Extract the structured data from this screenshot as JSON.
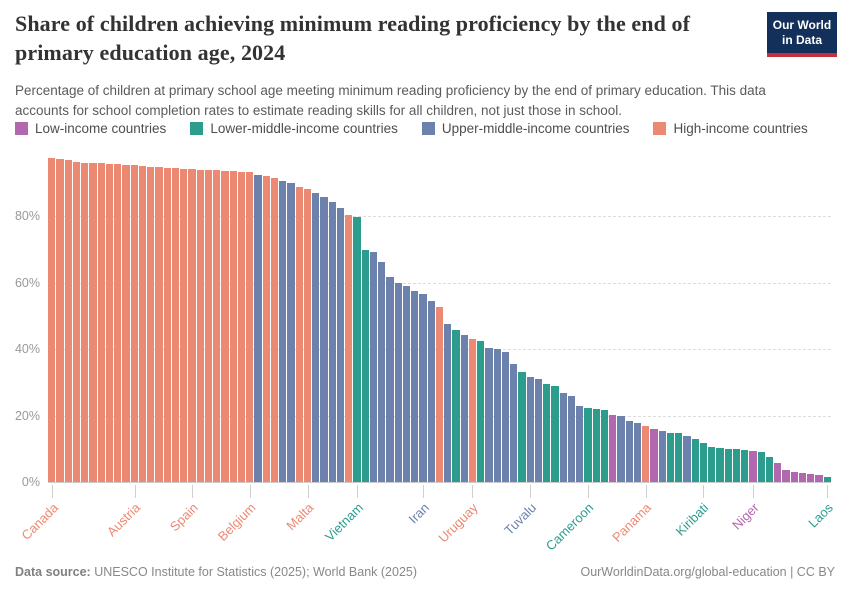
{
  "header": {
    "title": "Share of children achieving minimum reading proficiency by the end of primary education age, 2024",
    "subtitle": "Percentage of children at primary school age meeting minimum reading proficiency by the end of primary education. This data accounts for school completion rates to estimate reading skills for all children, not just those in school.",
    "logo_line1": "Our World",
    "logo_line2": "in Data"
  },
  "colors": {
    "low": "#b168ae",
    "lm": "#2c9d8d",
    "um": "#6c81ac",
    "high": "#ec8972"
  },
  "legend": {
    "items": [
      {
        "id": "low",
        "label": "Low-income countries"
      },
      {
        "id": "lm",
        "label": "Lower-middle-income countries"
      },
      {
        "id": "um",
        "label": "Upper-middle-income countries"
      },
      {
        "id": "high",
        "label": "High-income countries"
      }
    ]
  },
  "chart_data": {
    "type": "bar",
    "title": "Share of children achieving minimum reading proficiency by the end of primary education age, 2024",
    "xlabel": "",
    "ylabel": "",
    "ylim": [
      0,
      100
    ],
    "grid": true,
    "legend_position": "top",
    "unit": "%",
    "y_ticks": [
      {
        "label": "0%",
        "value": 0
      },
      {
        "label": "20%",
        "value": 20
      },
      {
        "label": "40%",
        "value": 40
      },
      {
        "label": "60%",
        "value": 60
      },
      {
        "label": "80%",
        "value": 80
      }
    ],
    "bars": [
      {
        "v": 97.5,
        "g": "high"
      },
      {
        "v": 97.2,
        "g": "high"
      },
      {
        "v": 96.9,
        "g": "high"
      },
      {
        "v": 96.4,
        "g": "high"
      },
      {
        "v": 96.2,
        "g": "high"
      },
      {
        "v": 96.1,
        "g": "high"
      },
      {
        "v": 96.0,
        "g": "high"
      },
      {
        "v": 95.9,
        "g": "high"
      },
      {
        "v": 95.8,
        "g": "high"
      },
      {
        "v": 95.6,
        "g": "high"
      },
      {
        "v": 95.5,
        "g": "high"
      },
      {
        "v": 95.2,
        "g": "high"
      },
      {
        "v": 94.9,
        "g": "high"
      },
      {
        "v": 94.8,
        "g": "high"
      },
      {
        "v": 94.6,
        "g": "high"
      },
      {
        "v": 94.5,
        "g": "high"
      },
      {
        "v": 94.4,
        "g": "high"
      },
      {
        "v": 94.3,
        "g": "high"
      },
      {
        "v": 94.1,
        "g": "high"
      },
      {
        "v": 94.0,
        "g": "high"
      },
      {
        "v": 93.9,
        "g": "high"
      },
      {
        "v": 93.8,
        "g": "high"
      },
      {
        "v": 93.6,
        "g": "high"
      },
      {
        "v": 93.5,
        "g": "high"
      },
      {
        "v": 93.3,
        "g": "high"
      },
      {
        "v": 92.6,
        "g": "um"
      },
      {
        "v": 92.2,
        "g": "high"
      },
      {
        "v": 91.5,
        "g": "high"
      },
      {
        "v": 90.8,
        "g": "um"
      },
      {
        "v": 90.0,
        "g": "um"
      },
      {
        "v": 89.0,
        "g": "high"
      },
      {
        "v": 88.2,
        "g": "high"
      },
      {
        "v": 87.2,
        "g": "um"
      },
      {
        "v": 85.8,
        "g": "um"
      },
      {
        "v": 84.2,
        "g": "um"
      },
      {
        "v": 82.5,
        "g": "um"
      },
      {
        "v": 80.3,
        "g": "high"
      },
      {
        "v": 79.8,
        "g": "lm"
      },
      {
        "v": 69.8,
        "g": "lm"
      },
      {
        "v": 69.2,
        "g": "um"
      },
      {
        "v": 66.3,
        "g": "um"
      },
      {
        "v": 61.7,
        "g": "um"
      },
      {
        "v": 59.8,
        "g": "um"
      },
      {
        "v": 59.0,
        "g": "um"
      },
      {
        "v": 57.5,
        "g": "um"
      },
      {
        "v": 56.5,
        "g": "um"
      },
      {
        "v": 54.6,
        "g": "um"
      },
      {
        "v": 52.6,
        "g": "high"
      },
      {
        "v": 47.6,
        "g": "um"
      },
      {
        "v": 45.8,
        "g": "lm"
      },
      {
        "v": 44.2,
        "g": "um"
      },
      {
        "v": 43.2,
        "g": "high"
      },
      {
        "v": 42.5,
        "g": "lm"
      },
      {
        "v": 40.5,
        "g": "um"
      },
      {
        "v": 40.0,
        "g": "um"
      },
      {
        "v": 39.2,
        "g": "um"
      },
      {
        "v": 35.5,
        "g": "um"
      },
      {
        "v": 33.0,
        "g": "lm"
      },
      {
        "v": 31.6,
        "g": "um"
      },
      {
        "v": 30.9,
        "g": "um"
      },
      {
        "v": 29.4,
        "g": "lm"
      },
      {
        "v": 28.9,
        "g": "lm"
      },
      {
        "v": 26.9,
        "g": "um"
      },
      {
        "v": 25.8,
        "g": "um"
      },
      {
        "v": 23.0,
        "g": "um"
      },
      {
        "v": 22.3,
        "g": "lm"
      },
      {
        "v": 22.0,
        "g": "lm"
      },
      {
        "v": 21.8,
        "g": "lm"
      },
      {
        "v": 20.3,
        "g": "low"
      },
      {
        "v": 20.0,
        "g": "um"
      },
      {
        "v": 18.5,
        "g": "um"
      },
      {
        "v": 17.8,
        "g": "um"
      },
      {
        "v": 17.0,
        "g": "high"
      },
      {
        "v": 16.0,
        "g": "low"
      },
      {
        "v": 15.5,
        "g": "um"
      },
      {
        "v": 14.9,
        "g": "lm"
      },
      {
        "v": 14.7,
        "g": "lm"
      },
      {
        "v": 13.9,
        "g": "um"
      },
      {
        "v": 12.9,
        "g": "lm"
      },
      {
        "v": 11.7,
        "g": "lm"
      },
      {
        "v": 10.5,
        "g": "lm"
      },
      {
        "v": 10.2,
        "g": "lm"
      },
      {
        "v": 10.0,
        "g": "lm"
      },
      {
        "v": 9.9,
        "g": "lm"
      },
      {
        "v": 9.7,
        "g": "lm"
      },
      {
        "v": 9.2,
        "g": "low"
      },
      {
        "v": 8.9,
        "g": "lm"
      },
      {
        "v": 7.6,
        "g": "lm"
      },
      {
        "v": 5.8,
        "g": "low"
      },
      {
        "v": 3.5,
        "g": "low"
      },
      {
        "v": 2.9,
        "g": "low"
      },
      {
        "v": 2.7,
        "g": "low"
      },
      {
        "v": 2.4,
        "g": "low"
      },
      {
        "v": 2.1,
        "g": "low"
      },
      {
        "v": 1.5,
        "g": "lm"
      }
    ],
    "x_tick_labels": [
      {
        "label": "Canada",
        "bar": 1,
        "g": "high"
      },
      {
        "label": "Austria",
        "bar": 11,
        "g": "high"
      },
      {
        "label": "Spain",
        "bar": 18,
        "g": "high"
      },
      {
        "label": "Belgium",
        "bar": 25,
        "g": "high"
      },
      {
        "label": "Malta",
        "bar": 32,
        "g": "high"
      },
      {
        "label": "Vietnam",
        "bar": 38,
        "g": "lm"
      },
      {
        "label": "Iran",
        "bar": 46,
        "g": "um"
      },
      {
        "label": "Uruguay",
        "bar": 52,
        "g": "high"
      },
      {
        "label": "Tuvalu",
        "bar": 59,
        "g": "um"
      },
      {
        "label": "Cameroon",
        "bar": 66,
        "g": "lm"
      },
      {
        "label": "Panama",
        "bar": 73,
        "g": "high"
      },
      {
        "label": "Kiribati",
        "bar": 80,
        "g": "lm"
      },
      {
        "label": "Niger",
        "bar": 86,
        "g": "low"
      },
      {
        "label": "Laos",
        "bar": 95,
        "g": "lm"
      }
    ]
  },
  "footer": {
    "source_label": "Data source:",
    "source_text": " UNESCO Institute for Statistics (2025); World Bank (2025)",
    "right_text": "OurWorldinData.org/global-education | CC BY"
  }
}
